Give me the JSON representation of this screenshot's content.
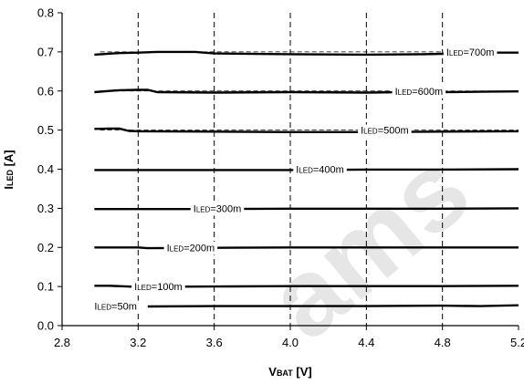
{
  "chart_data": {
    "type": "line",
    "title": "",
    "xlabel": {
      "main": "V",
      "sub": "BAT",
      "rest": " [V]"
    },
    "ylabel": {
      "main": "I",
      "sub": "LED",
      "rest": " [A]"
    },
    "xlim": [
      2.8,
      5.2
    ],
    "ylim": [
      0,
      0.8
    ],
    "xticks": [
      "2.8",
      "3.2",
      "3.6",
      "4.0",
      "4.4",
      "4.8",
      "5.2"
    ],
    "yticks": [
      "0.0",
      "0.1",
      "0.2",
      "0.3",
      "0.4",
      "0.5",
      "0.6",
      "0.7",
      "0.8"
    ],
    "grid": {
      "vertical": "dashed",
      "horizontal_at_targets": "dashed"
    },
    "series": [
      {
        "label": {
          "main": "I",
          "sub": "LED",
          "rest": "=700m"
        },
        "target": 0.7,
        "x": [
          2.97,
          3.1,
          3.2,
          3.3,
          3.5,
          3.6,
          4.0,
          4.4,
          4.7,
          4.8,
          4.96,
          5.2
        ],
        "y": [
          0.693,
          0.697,
          0.698,
          0.7,
          0.7,
          0.696,
          0.694,
          0.693,
          0.694,
          0.695,
          0.698,
          0.698
        ]
      },
      {
        "label": {
          "main": "I",
          "sub": "LED",
          "rest": "=600m"
        },
        "target": 0.6,
        "x": [
          2.97,
          3.1,
          3.2,
          3.25,
          3.3,
          3.6,
          4.0,
          4.4,
          4.6,
          4.8,
          5.0,
          5.2
        ],
        "y": [
          0.597,
          0.602,
          0.603,
          0.603,
          0.597,
          0.596,
          0.597,
          0.596,
          0.597,
          0.597,
          0.598,
          0.599
        ]
      },
      {
        "label": {
          "main": "I",
          "sub": "LED",
          "rest": "=500m"
        },
        "target": 0.5,
        "x": [
          2.97,
          3.05,
          3.1,
          3.15,
          3.2,
          3.6,
          4.0,
          4.4,
          4.8,
          5.2
        ],
        "y": [
          0.503,
          0.504,
          0.504,
          0.498,
          0.497,
          0.496,
          0.495,
          0.495,
          0.496,
          0.497
        ]
      },
      {
        "label": {
          "main": "I",
          "sub": "LED",
          "rest": "=400m"
        },
        "target": 0.4,
        "x": [
          2.97,
          3.6,
          4.0,
          4.4,
          4.8,
          5.2
        ],
        "y": [
          0.398,
          0.398,
          0.398,
          0.399,
          0.399,
          0.4
        ]
      },
      {
        "label": {
          "main": "I",
          "sub": "LED",
          "rest": "=300m"
        },
        "target": 0.3,
        "x": [
          2.97,
          3.6,
          4.0,
          4.4,
          4.8,
          5.2
        ],
        "y": [
          0.298,
          0.298,
          0.299,
          0.299,
          0.299,
          0.3
        ]
      },
      {
        "label": {
          "main": "I",
          "sub": "LED",
          "rest": "=200m"
        },
        "target": 0.2,
        "x": [
          2.97,
          3.2,
          3.25,
          3.6,
          4.0,
          4.4,
          4.8,
          5.2
        ],
        "y": [
          0.2,
          0.2,
          0.198,
          0.199,
          0.2,
          0.2,
          0.2,
          0.2
        ]
      },
      {
        "label": {
          "main": "I",
          "sub": "LED",
          "rest": "=100m"
        },
        "target": 0.1,
        "x": [
          2.97,
          3.05,
          3.2,
          3.6,
          4.0,
          4.4,
          4.8,
          5.2
        ],
        "y": [
          0.102,
          0.102,
          0.099,
          0.1,
          0.101,
          0.101,
          0.101,
          0.102
        ]
      },
      {
        "label": {
          "main": "I",
          "sub": "LED",
          "rest": "=50m"
        },
        "target": 0.05,
        "x": [
          3.25,
          3.6,
          4.0,
          4.4,
          4.8,
          5.0,
          5.2
        ],
        "y": [
          0.049,
          0.05,
          0.05,
          0.05,
          0.051,
          0.05,
          0.052
        ]
      }
    ]
  },
  "watermark": {
    "text": "ams",
    "color": "#e6e6e6"
  }
}
